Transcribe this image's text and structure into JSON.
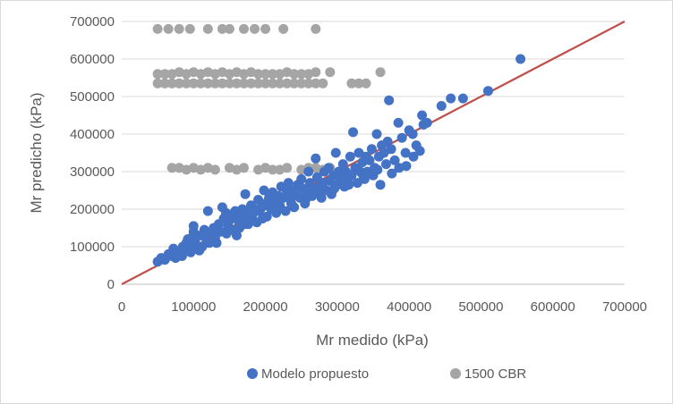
{
  "chart_data": {
    "type": "scatter",
    "title": "",
    "xlabel": "Mr medido (kPa)",
    "ylabel": "Mr predicho (kPa)",
    "xlim": [
      0,
      700000
    ],
    "ylim": [
      0,
      700000
    ],
    "xticks": [
      0,
      100000,
      200000,
      300000,
      400000,
      500000,
      600000,
      700000
    ],
    "yticks": [
      0,
      100000,
      200000,
      300000,
      400000,
      500000,
      600000,
      700000
    ],
    "xtick_labels": [
      "0",
      "100000",
      "200000",
      "300000",
      "400000",
      "500000",
      "600000",
      "700000"
    ],
    "ytick_labels": [
      "0",
      "100000",
      "200000",
      "300000",
      "400000",
      "500000",
      "600000",
      "700000"
    ],
    "grid": "horizontal",
    "legend_position": "bottom",
    "reference_line": {
      "x": [
        0,
        700000
      ],
      "y": [
        0,
        700000
      ],
      "color": "#c0504d"
    },
    "series": [
      {
        "name": "Modelo propuesto",
        "color": "#4472c4",
        "points": [
          [
            50000,
            60000
          ],
          [
            55000,
            70000
          ],
          [
            60000,
            65000
          ],
          [
            65000,
            80000
          ],
          [
            70000,
            75000
          ],
          [
            72000,
            95000
          ],
          [
            75000,
            70000
          ],
          [
            80000,
            85000
          ],
          [
            85000,
            100000
          ],
          [
            88000,
            90000
          ],
          [
            90000,
            110000
          ],
          [
            92000,
            120000
          ],
          [
            95000,
            105000
          ],
          [
            98000,
            125000
          ],
          [
            100000,
            140000
          ],
          [
            100000,
            155000
          ],
          [
            102000,
            115000
          ],
          [
            105000,
            95000
          ],
          [
            110000,
            130000
          ],
          [
            112000,
            100000
          ],
          [
            115000,
            145000
          ],
          [
            118000,
            120000
          ],
          [
            120000,
            195000
          ],
          [
            122000,
            110000
          ],
          [
            125000,
            135000
          ],
          [
            128000,
            150000
          ],
          [
            130000,
            125000
          ],
          [
            135000,
            160000
          ],
          [
            138000,
            140000
          ],
          [
            140000,
            205000
          ],
          [
            142000,
            175000
          ],
          [
            145000,
            190000
          ],
          [
            148000,
            155000
          ],
          [
            150000,
            170000
          ],
          [
            152000,
            185000
          ],
          [
            155000,
            145000
          ],
          [
            158000,
            195000
          ],
          [
            160000,
            130000
          ],
          [
            162000,
            170000
          ],
          [
            165000,
            180000
          ],
          [
            168000,
            200000
          ],
          [
            170000,
            160000
          ],
          [
            172000,
            240000
          ],
          [
            175000,
            190000
          ],
          [
            178000,
            175000
          ],
          [
            180000,
            210000
          ],
          [
            182000,
            185000
          ],
          [
            185000,
            200000
          ],
          [
            188000,
            165000
          ],
          [
            190000,
            225000
          ],
          [
            192000,
            195000
          ],
          [
            195000,
            205000
          ],
          [
            198000,
            250000
          ],
          [
            200000,
            215000
          ],
          [
            202000,
            180000
          ],
          [
            205000,
            230000
          ],
          [
            208000,
            200000
          ],
          [
            210000,
            245000
          ],
          [
            212000,
            220000
          ],
          [
            215000,
            190000
          ],
          [
            218000,
            235000
          ],
          [
            220000,
            210000
          ],
          [
            222000,
            260000
          ],
          [
            225000,
            230000
          ],
          [
            228000,
            195000
          ],
          [
            230000,
            245000
          ],
          [
            232000,
            270000
          ],
          [
            235000,
            225000
          ],
          [
            238000,
            250000
          ],
          [
            240000,
            205000
          ],
          [
            242000,
            240000
          ],
          [
            245000,
            265000
          ],
          [
            248000,
            230000
          ],
          [
            250000,
            280000
          ],
          [
            252000,
            255000
          ],
          [
            255000,
            215000
          ],
          [
            258000,
            245000
          ],
          [
            260000,
            300000
          ],
          [
            262000,
            270000
          ],
          [
            265000,
            235000
          ],
          [
            268000,
            255000
          ],
          [
            270000,
            335000
          ],
          [
            272000,
            285000
          ],
          [
            275000,
            260000
          ],
          [
            278000,
            230000
          ],
          [
            280000,
            270000
          ],
          [
            282000,
            300000
          ],
          [
            285000,
            250000
          ],
          [
            288000,
            310000
          ],
          [
            290000,
            275000
          ],
          [
            292000,
            240000
          ],
          [
            295000,
            290000
          ],
          [
            298000,
            350000
          ],
          [
            300000,
            265000
          ],
          [
            302000,
            300000
          ],
          [
            305000,
            280000
          ],
          [
            308000,
            320000
          ],
          [
            310000,
            260000
          ],
          [
            312000,
            300000
          ],
          [
            315000,
            280000
          ],
          [
            318000,
            340000
          ],
          [
            320000,
            290000
          ],
          [
            322000,
            405000
          ],
          [
            325000,
            310000
          ],
          [
            328000,
            270000
          ],
          [
            330000,
            350000
          ],
          [
            332000,
            300000
          ],
          [
            335000,
            325000
          ],
          [
            338000,
            280000
          ],
          [
            340000,
            340000
          ],
          [
            342000,
            300000
          ],
          [
            345000,
            330000
          ],
          [
            348000,
            360000
          ],
          [
            350000,
            290000
          ],
          [
            352000,
            310000
          ],
          [
            355000,
            400000
          ],
          [
            358000,
            340000
          ],
          [
            360000,
            265000
          ],
          [
            362000,
            370000
          ],
          [
            365000,
            350000
          ],
          [
            368000,
            320000
          ],
          [
            370000,
            380000
          ],
          [
            372000,
            490000
          ],
          [
            375000,
            360000
          ],
          [
            380000,
            330000
          ],
          [
            385000,
            430000
          ],
          [
            390000,
            390000
          ],
          [
            395000,
            350000
          ],
          [
            400000,
            410000
          ],
          [
            405000,
            400000
          ],
          [
            410000,
            370000
          ],
          [
            415000,
            355000
          ],
          [
            418000,
            450000
          ],
          [
            420000,
            425000
          ],
          [
            425000,
            430000
          ],
          [
            445000,
            475000
          ],
          [
            458000,
            495000
          ],
          [
            475000,
            495000
          ],
          [
            510000,
            515000
          ],
          [
            555000,
            600000
          ],
          [
            84000,
            75000
          ],
          [
            96000,
            85000
          ],
          [
            108000,
            90000
          ],
          [
            132000,
            110000
          ],
          [
            146000,
            135000
          ],
          [
            164000,
            150000
          ],
          [
            176000,
            160000
          ],
          [
            196000,
            175000
          ],
          [
            216000,
            200000
          ],
          [
            236000,
            215000
          ],
          [
            256000,
            225000
          ],
          [
            276000,
            245000
          ],
          [
            296000,
            255000
          ],
          [
            316000,
            265000
          ],
          [
            336000,
            290000
          ],
          [
            356000,
            305000
          ],
          [
            376000,
            295000
          ],
          [
            386000,
            310000
          ],
          [
            396000,
            315000
          ],
          [
            406000,
            340000
          ]
        ]
      },
      {
        "name": "1500 CBR",
        "color": "#a5a5a5",
        "points": [
          [
            50000,
            680000
          ],
          [
            65000,
            680000
          ],
          [
            80000,
            680000
          ],
          [
            95000,
            680000
          ],
          [
            120000,
            680000
          ],
          [
            140000,
            680000
          ],
          [
            150000,
            680000
          ],
          [
            170000,
            680000
          ],
          [
            185000,
            680000
          ],
          [
            200000,
            680000
          ],
          [
            225000,
            680000
          ],
          [
            270000,
            680000
          ],
          [
            50000,
            560000
          ],
          [
            60000,
            560000
          ],
          [
            70000,
            560000
          ],
          [
            80000,
            565000
          ],
          [
            90000,
            560000
          ],
          [
            100000,
            565000
          ],
          [
            110000,
            560000
          ],
          [
            120000,
            565000
          ],
          [
            130000,
            560000
          ],
          [
            140000,
            565000
          ],
          [
            150000,
            560000
          ],
          [
            160000,
            565000
          ],
          [
            170000,
            560000
          ],
          [
            180000,
            565000
          ],
          [
            190000,
            560000
          ],
          [
            200000,
            560000
          ],
          [
            210000,
            560000
          ],
          [
            220000,
            560000
          ],
          [
            230000,
            565000
          ],
          [
            240000,
            560000
          ],
          [
            250000,
            560000
          ],
          [
            260000,
            560000
          ],
          [
            270000,
            565000
          ],
          [
            290000,
            565000
          ],
          [
            360000,
            565000
          ],
          [
            50000,
            535000
          ],
          [
            60000,
            535000
          ],
          [
            70000,
            535000
          ],
          [
            80000,
            535000
          ],
          [
            90000,
            535000
          ],
          [
            100000,
            535000
          ],
          [
            110000,
            535000
          ],
          [
            120000,
            535000
          ],
          [
            130000,
            535000
          ],
          [
            140000,
            535000
          ],
          [
            150000,
            535000
          ],
          [
            160000,
            535000
          ],
          [
            170000,
            535000
          ],
          [
            180000,
            535000
          ],
          [
            190000,
            535000
          ],
          [
            200000,
            535000
          ],
          [
            210000,
            535000
          ],
          [
            220000,
            535000
          ],
          [
            230000,
            535000
          ],
          [
            240000,
            535000
          ],
          [
            250000,
            535000
          ],
          [
            260000,
            535000
          ],
          [
            270000,
            535000
          ],
          [
            280000,
            535000
          ],
          [
            320000,
            535000
          ],
          [
            330000,
            535000
          ],
          [
            340000,
            535000
          ],
          [
            70000,
            310000
          ],
          [
            80000,
            310000
          ],
          [
            90000,
            305000
          ],
          [
            100000,
            310000
          ],
          [
            110000,
            305000
          ],
          [
            120000,
            310000
          ],
          [
            130000,
            305000
          ],
          [
            150000,
            310000
          ],
          [
            160000,
            305000
          ],
          [
            170000,
            310000
          ],
          [
            190000,
            305000
          ],
          [
            200000,
            310000
          ],
          [
            210000,
            305000
          ],
          [
            220000,
            305000
          ],
          [
            230000,
            310000
          ],
          [
            250000,
            305000
          ],
          [
            260000,
            310000
          ],
          [
            270000,
            310000
          ],
          [
            280000,
            305000
          ],
          [
            290000,
            310000
          ]
        ]
      }
    ]
  }
}
